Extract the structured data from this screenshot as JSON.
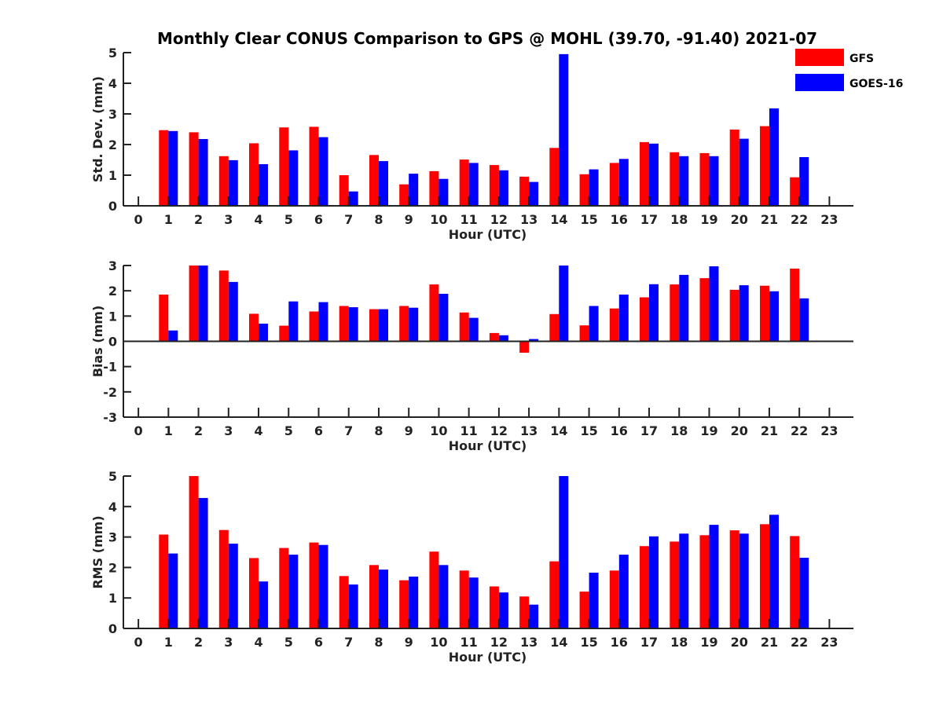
{
  "title": "Monthly Clear CONUS Comparison to GPS @ MOHL (39.70, -91.40) 2021-07",
  "legend": [
    {
      "name": "GFS",
      "color": "#ff0000"
    },
    {
      "name": "GOES-16",
      "color": "#0000ff"
    }
  ],
  "chart_data": [
    {
      "type": "bar",
      "xlabel": "Hour (UTC)",
      "ylabel": "Std. Dev. (mm)",
      "xlim": [
        -0.5,
        23.8
      ],
      "ylim": [
        0,
        5
      ],
      "yticks": [
        0,
        1,
        2,
        3,
        4,
        5
      ],
      "categories": [
        0,
        1,
        2,
        3,
        4,
        5,
        6,
        7,
        8,
        9,
        10,
        11,
        12,
        13,
        14,
        15,
        16,
        17,
        18,
        19,
        20,
        21,
        22,
        23
      ],
      "series": [
        {
          "name": "GFS",
          "color": "#ff0000",
          "values": [
            null,
            2.47,
            2.4,
            1.62,
            2.04,
            2.56,
            2.58,
            1.0,
            1.66,
            0.7,
            1.13,
            1.51,
            1.33,
            0.95,
            1.89,
            1.03,
            1.4,
            2.08,
            1.75,
            1.72,
            2.49,
            2.6,
            0.93,
            null
          ]
        },
        {
          "name": "GOES-16",
          "color": "#0000ff",
          "values": [
            null,
            2.44,
            2.18,
            1.49,
            1.36,
            1.81,
            2.24,
            0.47,
            1.46,
            1.05,
            0.88,
            1.4,
            1.16,
            0.78,
            4.95,
            1.19,
            1.53,
            2.03,
            1.62,
            1.62,
            2.19,
            3.18,
            1.59,
            null
          ]
        }
      ]
    },
    {
      "type": "bar",
      "xlabel": "Hour (UTC)",
      "ylabel": "Bias (mm)",
      "xlim": [
        -0.5,
        23.8
      ],
      "ylim": [
        -3,
        3
      ],
      "yticks": [
        -3,
        -2,
        -1,
        0,
        1,
        2,
        3
      ],
      "categories": [
        0,
        1,
        2,
        3,
        4,
        5,
        6,
        7,
        8,
        9,
        10,
        11,
        12,
        13,
        14,
        15,
        16,
        17,
        18,
        19,
        20,
        21,
        22,
        23
      ],
      "series": [
        {
          "name": "GFS",
          "color": "#ff0000",
          "values": [
            null,
            1.85,
            3.0,
            2.8,
            1.09,
            0.62,
            1.18,
            1.4,
            1.27,
            1.4,
            2.25,
            1.14,
            0.33,
            -0.45,
            1.08,
            0.63,
            1.3,
            1.74,
            2.25,
            2.5,
            2.04,
            2.2,
            2.88,
            null
          ]
        },
        {
          "name": "GOES-16",
          "color": "#0000ff",
          "values": [
            null,
            0.43,
            3.0,
            2.35,
            0.7,
            1.58,
            1.55,
            1.35,
            1.27,
            1.33,
            1.88,
            0.93,
            0.24,
            0.09,
            3.0,
            1.4,
            1.85,
            2.26,
            2.63,
            2.97,
            2.22,
            1.98,
            1.7,
            null
          ]
        }
      ]
    },
    {
      "type": "bar",
      "xlabel": "Hour (UTC)",
      "ylabel": "RMS (mm)",
      "xlim": [
        -0.5,
        23.8
      ],
      "ylim": [
        0,
        5
      ],
      "yticks": [
        0,
        1,
        2,
        3,
        4,
        5
      ],
      "categories": [
        0,
        1,
        2,
        3,
        4,
        5,
        6,
        7,
        8,
        9,
        10,
        11,
        12,
        13,
        14,
        15,
        16,
        17,
        18,
        19,
        20,
        21,
        22,
        23
      ],
      "series": [
        {
          "name": "GFS",
          "color": "#ff0000",
          "values": [
            null,
            3.08,
            5.0,
            3.23,
            2.31,
            2.64,
            2.82,
            1.72,
            2.08,
            1.58,
            2.52,
            1.9,
            1.38,
            1.05,
            2.2,
            1.21,
            1.9,
            2.7,
            2.85,
            3.06,
            3.22,
            3.42,
            3.03,
            null
          ]
        },
        {
          "name": "GOES-16",
          "color": "#0000ff",
          "values": [
            null,
            2.46,
            4.28,
            2.78,
            1.54,
            2.42,
            2.74,
            1.44,
            1.93,
            1.7,
            2.08,
            1.67,
            1.18,
            0.78,
            5.0,
            1.83,
            2.42,
            3.02,
            3.11,
            3.4,
            3.11,
            3.73,
            2.32,
            null
          ]
        }
      ]
    }
  ]
}
